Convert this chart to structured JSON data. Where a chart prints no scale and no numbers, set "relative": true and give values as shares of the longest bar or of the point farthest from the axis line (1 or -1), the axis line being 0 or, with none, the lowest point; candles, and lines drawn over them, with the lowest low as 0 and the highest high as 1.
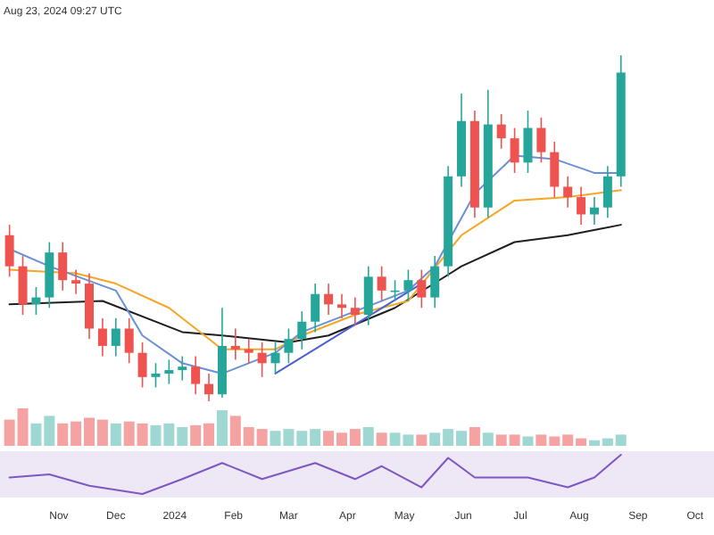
{
  "chart_data": [
    {
      "type": "candlestick",
      "relative": true,
      "annotations": [
        "Aug 23, 2024 09:27 UTC"
      ],
      "tick_labels": false,
      "xlim": [
        "2023-10-01",
        "2024-10-11"
      ],
      "x": [
        "2023-10-06",
        "2023-10-13",
        "2023-10-20",
        "2023-10-27",
        "2023-11-03",
        "2023-11-10",
        "2023-11-17",
        "2023-11-24",
        "2023-12-01",
        "2023-12-08",
        "2023-12-15",
        "2023-12-22",
        "2023-12-29",
        "2024-01-05",
        "2024-01-12",
        "2024-01-19",
        "2024-01-26",
        "2024-02-02",
        "2024-02-09",
        "2024-02-16",
        "2024-02-23",
        "2024-03-01",
        "2024-03-08",
        "2024-03-15",
        "2024-03-22",
        "2024-03-29",
        "2024-04-05",
        "2024-04-12",
        "2024-04-19",
        "2024-04-26",
        "2024-05-03",
        "2024-05-10",
        "2024-05-17",
        "2024-05-24",
        "2024-05-31",
        "2024-06-07",
        "2024-06-14",
        "2024-06-21",
        "2024-06-28",
        "2024-07-05",
        "2024-07-12",
        "2024-07-19",
        "2024-07-26",
        "2024-08-02",
        "2024-08-09",
        "2024-08-16",
        "2024-08-23"
      ],
      "ohlc": [
        [
          0.48,
          0.51,
          0.36,
          0.39
        ],
        [
          0.39,
          0.42,
          0.25,
          0.28
        ],
        [
          0.28,
          0.33,
          0.25,
          0.3
        ],
        [
          0.3,
          0.46,
          0.27,
          0.43
        ],
        [
          0.43,
          0.46,
          0.32,
          0.35
        ],
        [
          0.35,
          0.38,
          0.31,
          0.34
        ],
        [
          0.34,
          0.37,
          0.18,
          0.21
        ],
        [
          0.21,
          0.24,
          0.13,
          0.16
        ],
        [
          0.16,
          0.24,
          0.13,
          0.21
        ],
        [
          0.21,
          0.24,
          0.11,
          0.14
        ],
        [
          0.14,
          0.17,
          0.04,
          0.07
        ],
        [
          0.07,
          0.11,
          0.04,
          0.08
        ],
        [
          0.08,
          0.12,
          0.05,
          0.09
        ],
        [
          0.09,
          0.13,
          0.06,
          0.1
        ],
        [
          0.1,
          0.13,
          0.02,
          0.05
        ],
        [
          0.05,
          0.08,
          0,
          0.02
        ],
        [
          0.02,
          0.27,
          0.01,
          0.16
        ],
        [
          0.16,
          0.21,
          0.12,
          0.15
        ],
        [
          0.15,
          0.18,
          0.11,
          0.14
        ],
        [
          0.14,
          0.17,
          0.07,
          0.11
        ],
        [
          0.11,
          0.17,
          0.08,
          0.14
        ],
        [
          0.14,
          0.21,
          0.11,
          0.18
        ],
        [
          0.18,
          0.26,
          0.15,
          0.23
        ],
        [
          0.23,
          0.34,
          0.2,
          0.31
        ],
        [
          0.31,
          0.34,
          0.25,
          0.28
        ],
        [
          0.28,
          0.31,
          0.24,
          0.27
        ],
        [
          0.27,
          0.3,
          0.22,
          0.25
        ],
        [
          0.25,
          0.39,
          0.22,
          0.36
        ],
        [
          0.36,
          0.39,
          0.29,
          0.32
        ],
        [
          0.32,
          0.35,
          0.29,
          0.32
        ],
        [
          0.32,
          0.38,
          0.29,
          0.35
        ],
        [
          0.35,
          0.38,
          0.27,
          0.3
        ],
        [
          0.3,
          0.42,
          0.27,
          0.39
        ],
        [
          0.39,
          0.68,
          0.36,
          0.65
        ],
        [
          0.65,
          0.89,
          0.62,
          0.81
        ],
        [
          0.81,
          0.84,
          0.53,
          0.56
        ],
        [
          0.56,
          0.9,
          0.53,
          0.8
        ],
        [
          0.8,
          0.83,
          0.73,
          0.76
        ],
        [
          0.76,
          0.79,
          0.66,
          0.69
        ],
        [
          0.69,
          0.84,
          0.66,
          0.79
        ],
        [
          0.79,
          0.82,
          0.69,
          0.72
        ],
        [
          0.72,
          0.75,
          0.59,
          0.62
        ],
        [
          0.62,
          0.65,
          0.56,
          0.59
        ],
        [
          0.59,
          0.62,
          0.51,
          0.54
        ],
        [
          0.54,
          0.59,
          0.51,
          0.56
        ],
        [
          0.56,
          0.68,
          0.53,
          0.65
        ],
        [
          0.65,
          1,
          0.62,
          0.95
        ]
      ],
      "colors": [
        "#ef5350",
        "#ef5350",
        "#26a69a",
        "#26a69a",
        "#ef5350",
        "#ef5350",
        "#ef5350",
        "#ef5350",
        "#26a69a",
        "#ef5350",
        "#ef5350",
        "#26a69a",
        "#26a69a",
        "#26a69a",
        "#ef5350",
        "#ef5350",
        "#26a69a",
        "#ef5350",
        "#ef5350",
        "#ef5350",
        "#26a69a",
        "#26a69a",
        "#26a69a",
        "#26a69a",
        "#ef5350",
        "#ef5350",
        "#ef5350",
        "#26a69a",
        "#ef5350",
        "#26a69a",
        "#26a69a",
        "#ef5350",
        "#26a69a",
        "#26a69a",
        "#26a69a",
        "#ef5350",
        "#26a69a",
        "#ef5350",
        "#ef5350",
        "#26a69a",
        "#ef5350",
        "#ef5350",
        "#ef5350",
        "#ef5350",
        "#26a69a",
        "#26a69a",
        "#26a69a"
      ],
      "series": [
        {
          "type": "line",
          "color": "#1f1f1f",
          "x": [
            "2023-10-06",
            "2023-11-24",
            "2024-01-05",
            "2024-01-26",
            "2024-03-01",
            "2024-03-22",
            "2024-04-26",
            "2024-05-31",
            "2024-06-28",
            "2024-07-26",
            "2024-08-23"
          ],
          "values": [
            0.28,
            0.29,
            0.2,
            0.19,
            0.17,
            0.19,
            0.27,
            0.39,
            0.46,
            0.48,
            0.51
          ]
        },
        {
          "type": "line",
          "color": "#f5a623",
          "x": [
            "2023-10-06",
            "2023-11-10",
            "2023-12-01",
            "2023-12-29",
            "2024-01-26",
            "2024-02-23",
            "2024-03-08",
            "2024-04-05",
            "2024-05-03",
            "2024-05-31",
            "2024-06-28",
            "2024-07-26",
            "2024-08-23"
          ],
          "values": [
            0.38,
            0.37,
            0.34,
            0.27,
            0.15,
            0.15,
            0.19,
            0.25,
            0.29,
            0.48,
            0.58,
            0.59,
            0.61
          ]
        },
        {
          "type": "line",
          "color": "#6b8fd6",
          "x": [
            "2023-10-06",
            "2023-10-27",
            "2023-12-01",
            "2023-12-15",
            "2024-01-05",
            "2024-01-26",
            "2024-02-23",
            "2024-03-08",
            "2024-04-05",
            "2024-05-03",
            "2024-05-17",
            "2024-06-07",
            "2024-06-28",
            "2024-07-19",
            "2024-08-09",
            "2024-08-23"
          ],
          "values": [
            0.44,
            0.39,
            0.32,
            0.19,
            0.11,
            0.08,
            0.14,
            0.2,
            0.26,
            0.32,
            0.39,
            0.6,
            0.71,
            0.7,
            0.66,
            0.66
          ]
        },
        {
          "type": "line",
          "color": "#4c5fd5",
          "x": [
            "2024-02-23",
            "2024-05-10"
          ],
          "values": [
            0.08,
            0.34
          ]
        }
      ]
    },
    {
      "type": "bar",
      "relative": true,
      "tick_labels": false,
      "xlim": [
        "2023-10-01",
        "2024-10-11"
      ],
      "x": [
        "2023-10-06",
        "2023-10-13",
        "2023-10-20",
        "2023-10-27",
        "2023-11-03",
        "2023-11-10",
        "2023-11-17",
        "2023-11-24",
        "2023-12-01",
        "2023-12-08",
        "2023-12-15",
        "2023-12-22",
        "2023-12-29",
        "2024-01-05",
        "2024-01-12",
        "2024-01-19",
        "2024-01-26",
        "2024-02-02",
        "2024-02-09",
        "2024-02-16",
        "2024-02-23",
        "2024-03-01",
        "2024-03-08",
        "2024-03-15",
        "2024-03-22",
        "2024-03-29",
        "2024-04-05",
        "2024-04-12",
        "2024-04-19",
        "2024-04-26",
        "2024-05-03",
        "2024-05-10",
        "2024-05-17",
        "2024-05-24",
        "2024-05-31",
        "2024-06-07",
        "2024-06-14",
        "2024-06-21",
        "2024-06-28",
        "2024-07-05",
        "2024-07-12",
        "2024-07-19",
        "2024-07-26",
        "2024-08-02",
        "2024-08-09",
        "2024-08-16",
        "2024-08-23"
      ],
      "values": [
        0.7,
        1.0,
        0.6,
        0.8,
        0.6,
        0.65,
        0.75,
        0.7,
        0.6,
        0.65,
        0.6,
        0.55,
        0.6,
        0.5,
        0.55,
        0.6,
        0.95,
        0.8,
        0.5,
        0.45,
        0.4,
        0.45,
        0.4,
        0.45,
        0.4,
        0.35,
        0.45,
        0.5,
        0.35,
        0.35,
        0.3,
        0.3,
        0.35,
        0.45,
        0.4,
        0.5,
        0.35,
        0.3,
        0.3,
        0.25,
        0.3,
        0.25,
        0.3,
        0.2,
        0.15,
        0.2,
        0.3
      ],
      "colors": [
        "#f5a3a2",
        "#f5a3a2",
        "#9fd8d2",
        "#9fd8d2",
        "#f5a3a2",
        "#f5a3a2",
        "#f5a3a2",
        "#f5a3a2",
        "#9fd8d2",
        "#f5a3a2",
        "#f5a3a2",
        "#9fd8d2",
        "#9fd8d2",
        "#9fd8d2",
        "#f5a3a2",
        "#f5a3a2",
        "#9fd8d2",
        "#f5a3a2",
        "#f5a3a2",
        "#f5a3a2",
        "#9fd8d2",
        "#9fd8d2",
        "#9fd8d2",
        "#9fd8d2",
        "#f5a3a2",
        "#f5a3a2",
        "#f5a3a2",
        "#9fd8d2",
        "#f5a3a2",
        "#9fd8d2",
        "#9fd8d2",
        "#f5a3a2",
        "#9fd8d2",
        "#9fd8d2",
        "#9fd8d2",
        "#f5a3a2",
        "#9fd8d2",
        "#f5a3a2",
        "#f5a3a2",
        "#9fd8d2",
        "#f5a3a2",
        "#f5a3a2",
        "#f5a3a2",
        "#f5a3a2",
        "#9fd8d2",
        "#9fd8d2",
        "#9fd8d2"
      ]
    },
    {
      "type": "line",
      "relative": true,
      "tick_labels": "x",
      "xlim": [
        "2023-10-01",
        "2024-10-11"
      ],
      "xticks": [
        {
          "value": "2023-11-01",
          "label": "Nov"
        },
        {
          "value": "2023-12-01",
          "label": "Dec"
        },
        {
          "value": "2024-01-01",
          "label": "2024"
        },
        {
          "value": "2024-02-01",
          "label": "Feb"
        },
        {
          "value": "2024-03-01",
          "label": "Mar"
        },
        {
          "value": "2024-04-01",
          "label": "Apr"
        },
        {
          "value": "2024-05-01",
          "label": "May"
        },
        {
          "value": "2024-06-01",
          "label": "Jun"
        },
        {
          "value": "2024-07-01",
          "label": "Jul"
        },
        {
          "value": "2024-08-01",
          "label": "Aug"
        },
        {
          "value": "2024-09-01",
          "label": "Sep"
        },
        {
          "value": "2024-10-01",
          "label": "Oct"
        }
      ],
      "series": [
        {
          "color": "#7e57c2",
          "x": [
            "2023-10-06",
            "2023-10-27",
            "2023-11-17",
            "2023-12-15",
            "2024-01-05",
            "2024-01-26",
            "2024-02-16",
            "2024-03-15",
            "2024-04-05",
            "2024-04-19",
            "2024-05-10",
            "2024-05-24",
            "2024-06-07",
            "2024-07-05",
            "2024-07-26",
            "2024-08-09",
            "2024-08-23"
          ],
          "values": [
            0.42,
            0.5,
            0.21,
            0,
            0.38,
            0.79,
            0.38,
            0.79,
            0.38,
            0.71,
            0.17,
            0.92,
            0.42,
            0.42,
            0.17,
            0.42,
            1
          ]
        }
      ]
    }
  ]
}
